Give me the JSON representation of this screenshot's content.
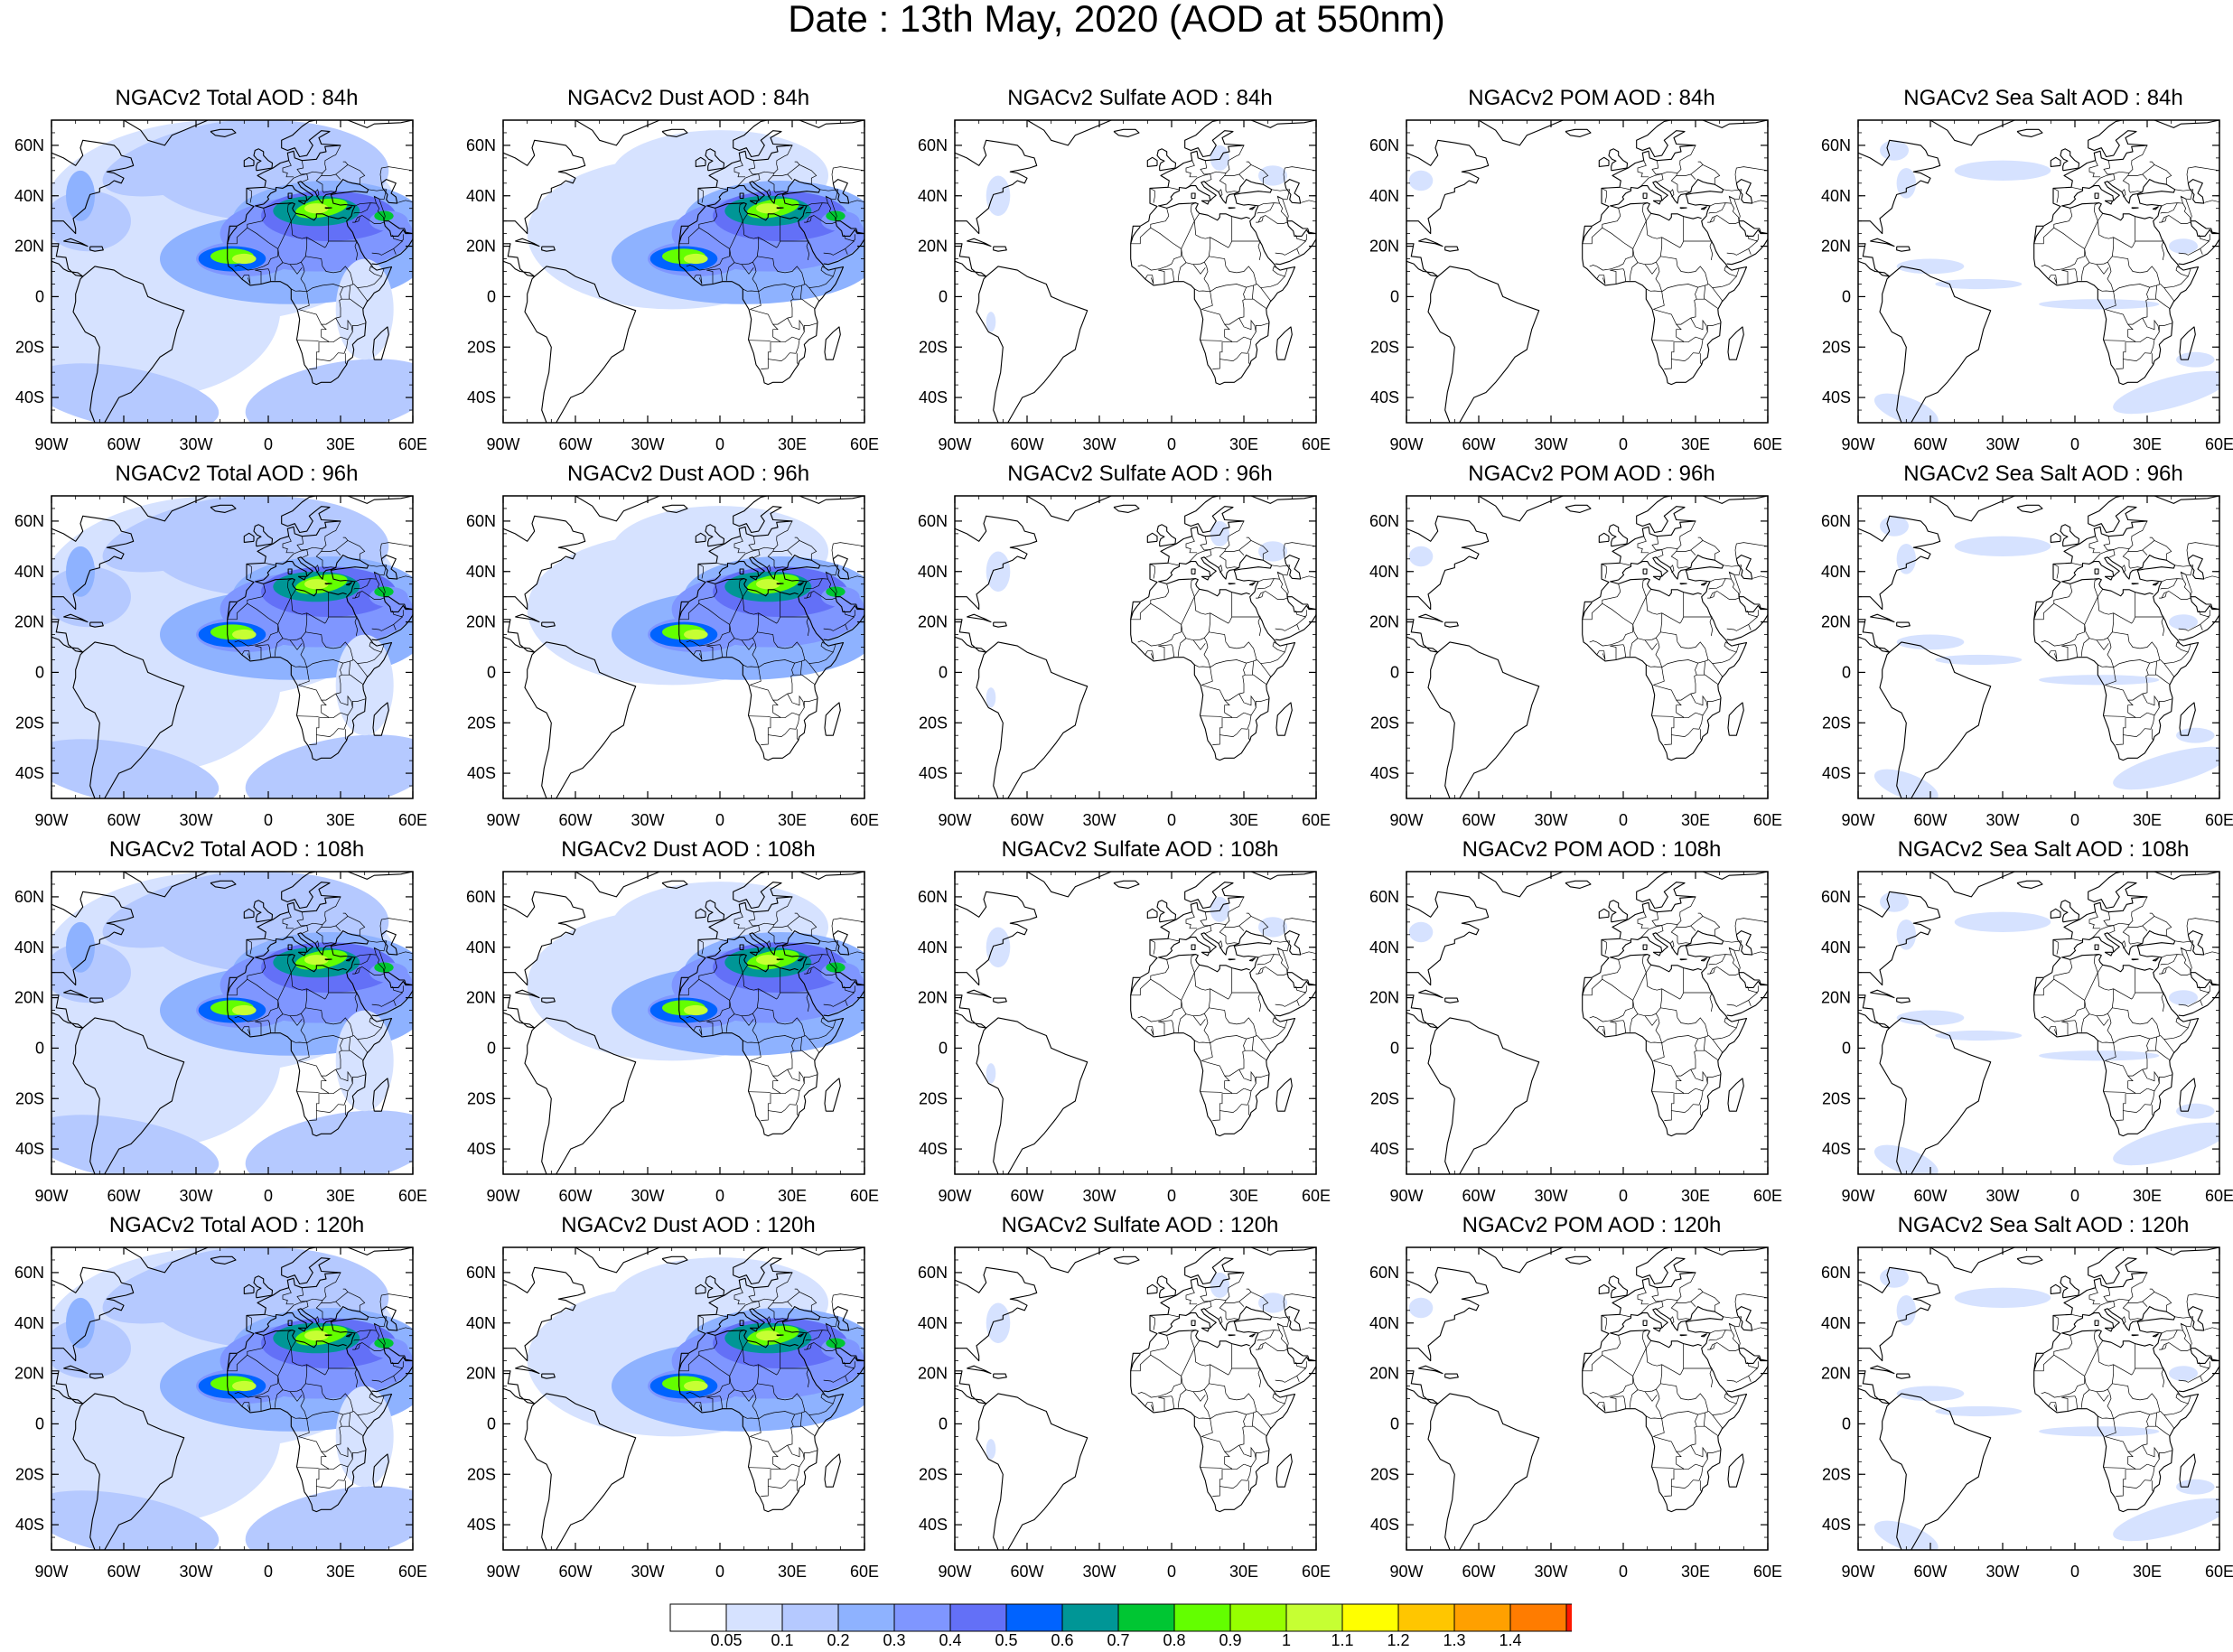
{
  "title": "Date : 13th May, 2020 (AOD at 550nm)",
  "axes": {
    "lat_ticks": [
      "60N",
      "40N",
      "20N",
      "0",
      "20S",
      "40S"
    ],
    "lat_values": [
      60,
      40,
      20,
      0,
      -20,
      -40
    ],
    "lon_ticks": [
      "90W",
      "60W",
      "30W",
      "0",
      "30E",
      "60E"
    ],
    "lon_values": [
      -90,
      -60,
      -30,
      0,
      30,
      60
    ],
    "lat_range": [
      -50,
      70
    ],
    "lon_range": [
      -90,
      60
    ]
  },
  "panels": [
    {
      "title": "NGACv2 Total AOD : 84h",
      "species": "total",
      "hour": 84
    },
    {
      "title": "NGACv2 Dust AOD : 84h",
      "species": "dust",
      "hour": 84
    },
    {
      "title": "NGACv2 Sulfate AOD : 84h",
      "species": "sulfate",
      "hour": 84
    },
    {
      "title": "NGACv2 POM AOD : 84h",
      "species": "pom",
      "hour": 84
    },
    {
      "title": "NGACv2 Sea Salt AOD : 84h",
      "species": "seasalt",
      "hour": 84
    },
    {
      "title": "NGACv2 Total AOD : 96h",
      "species": "total",
      "hour": 96
    },
    {
      "title": "NGACv2 Dust AOD : 96h",
      "species": "dust",
      "hour": 96
    },
    {
      "title": "NGACv2 Sulfate AOD : 96h",
      "species": "sulfate",
      "hour": 96
    },
    {
      "title": "NGACv2 POM AOD : 96h",
      "species": "pom",
      "hour": 96
    },
    {
      "title": "NGACv2 Sea Salt AOD : 96h",
      "species": "seasalt",
      "hour": 96
    },
    {
      "title": "NGACv2 Total AOD : 108h",
      "species": "total",
      "hour": 108
    },
    {
      "title": "NGACv2 Dust AOD : 108h",
      "species": "dust",
      "hour": 108
    },
    {
      "title": "NGACv2 Sulfate AOD : 108h",
      "species": "sulfate",
      "hour": 108
    },
    {
      "title": "NGACv2 POM AOD : 108h",
      "species": "pom",
      "hour": 108
    },
    {
      "title": "NGACv2 Sea Salt AOD : 108h",
      "species": "seasalt",
      "hour": 108
    },
    {
      "title": "NGACv2 Total AOD : 120h",
      "species": "total",
      "hour": 120
    },
    {
      "title": "NGACv2 Dust AOD : 120h",
      "species": "dust",
      "hour": 120
    },
    {
      "title": "NGACv2 Sulfate AOD : 120h",
      "species": "sulfate",
      "hour": 120
    },
    {
      "title": "NGACv2 POM AOD : 120h",
      "species": "pom",
      "hour": 120
    },
    {
      "title": "NGACv2 Sea Salt  AOD : 120h",
      "species": "seasalt",
      "hour": 120
    }
  ],
  "colorbar": {
    "labels": [
      "0.05",
      "0.1",
      "0.2",
      "0.3",
      "0.4",
      "0.5",
      "0.6",
      "0.7",
      "0.8",
      "0.9",
      "1",
      "1.1",
      "1.2",
      "1.3",
      "1.4"
    ],
    "colors": [
      "#ffffff",
      "#d6e2ff",
      "#b5c9ff",
      "#8eb2ff",
      "#7f96ff",
      "#6370f7",
      "#0063ff",
      "#009696",
      "#00c633",
      "#63ff00",
      "#96ff00",
      "#c6ff33",
      "#ffff00",
      "#ffc600",
      "#ffa000",
      "#ff7c00",
      "#ff1900"
    ]
  },
  "colors": {
    "land_outline": "#000000",
    "frame": "#000000"
  }
}
